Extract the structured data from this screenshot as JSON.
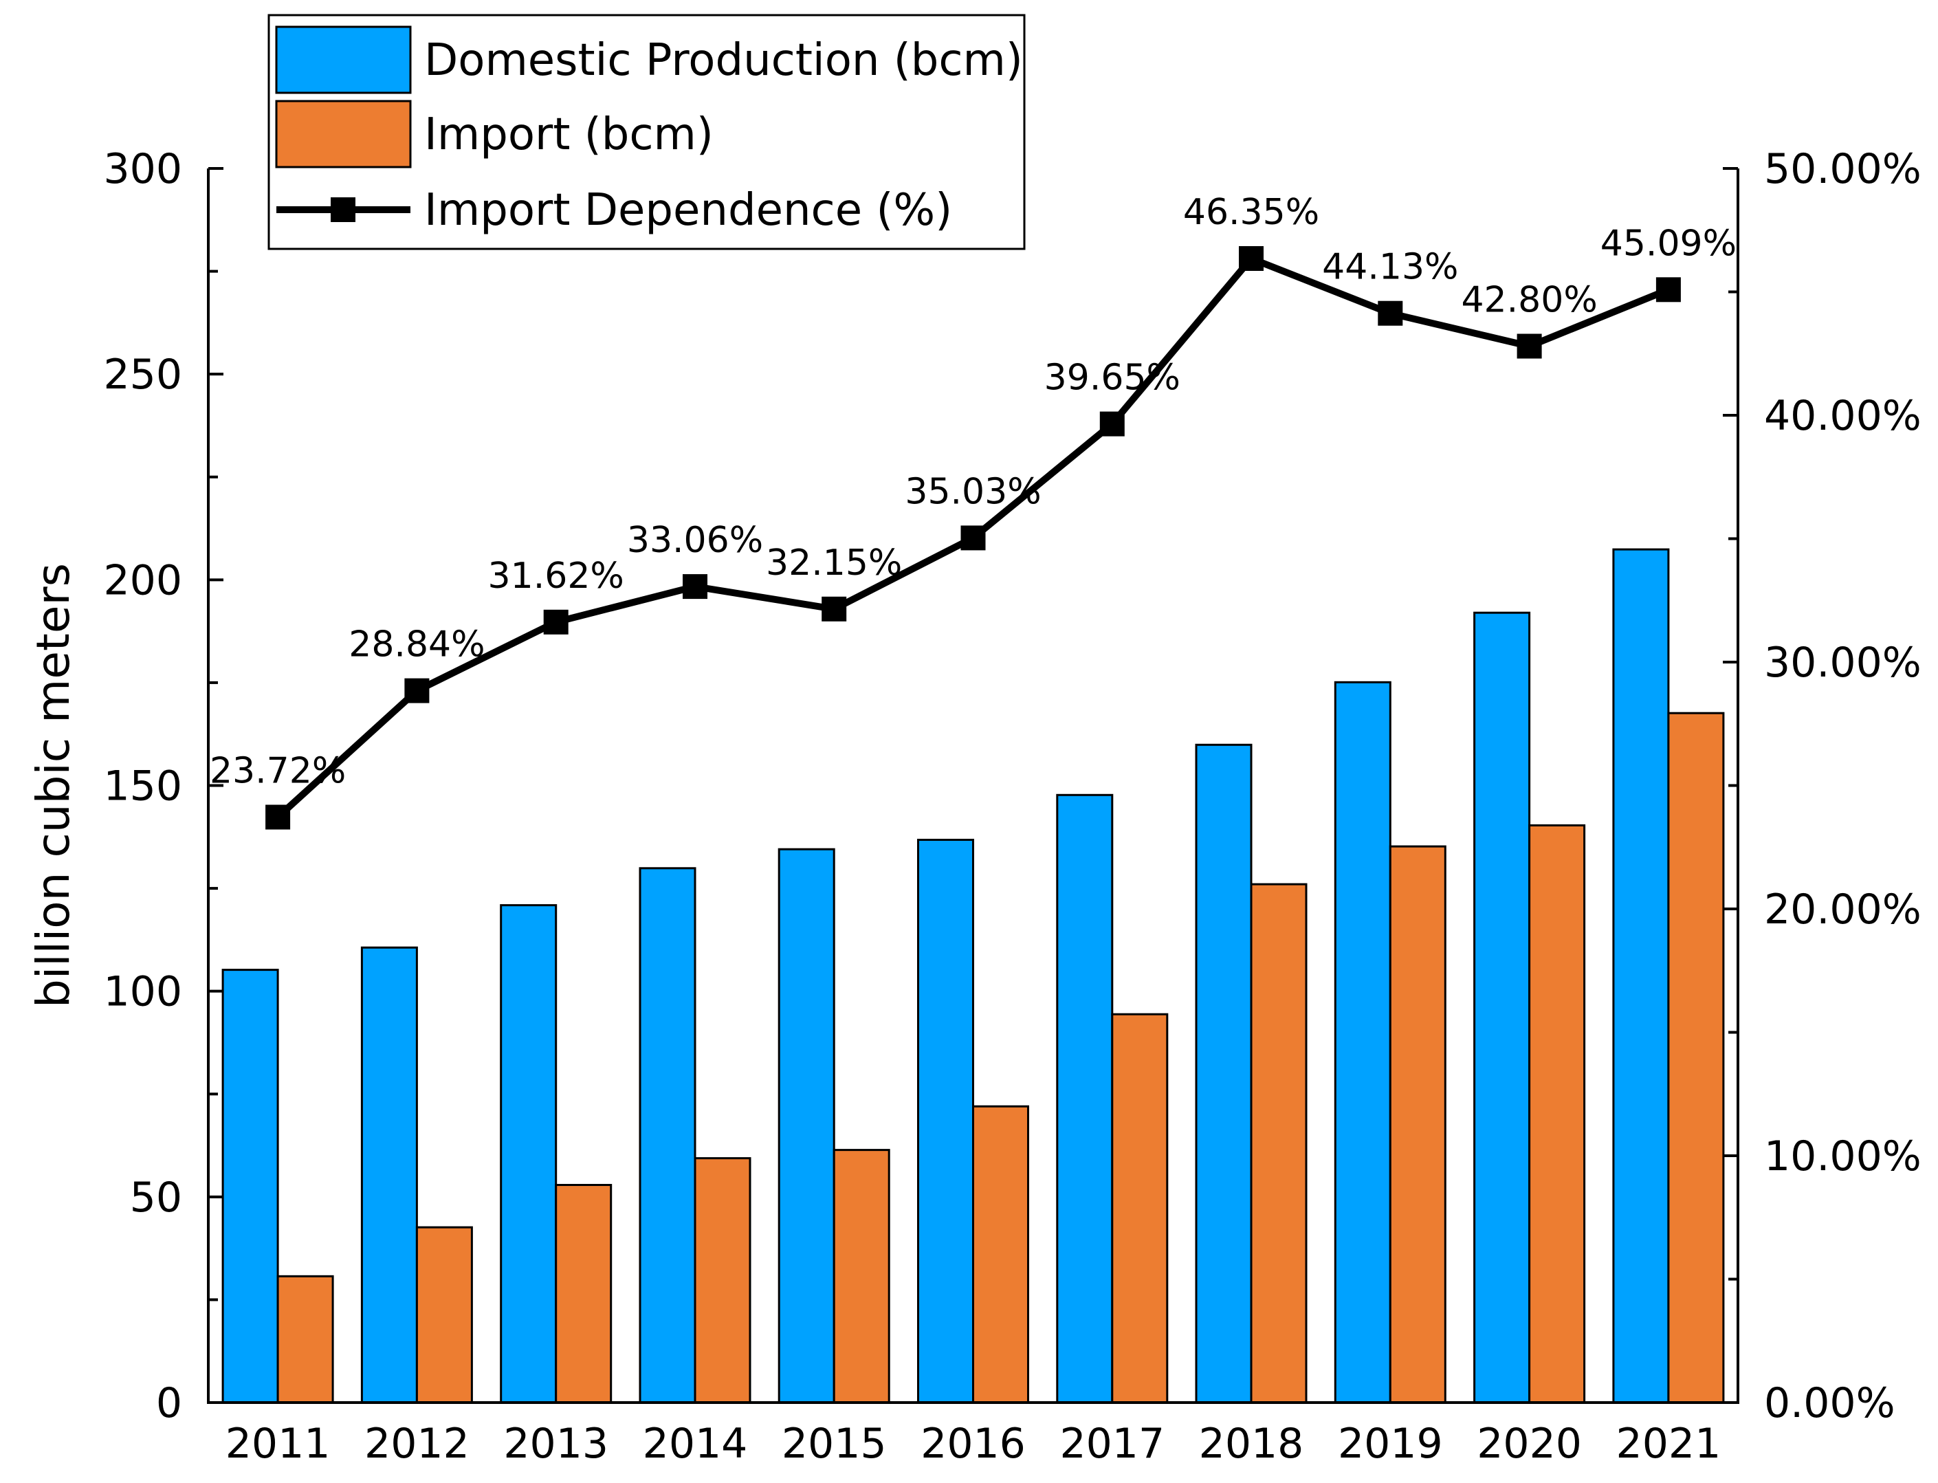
{
  "chart_data": {
    "type": "bar",
    "categories": [
      "2011",
      "2012",
      "2013",
      "2014",
      "2015",
      "2016",
      "2017",
      "2018",
      "2019",
      "2020",
      "2021"
    ],
    "series": [
      {
        "name": "Domestic Production (bcm)",
        "kind": "bar",
        "axis": "left",
        "color": "#00A2FF",
        "values": [
          105.2,
          110.6,
          120.9,
          129.9,
          134.5,
          136.8,
          147.7,
          159.9,
          175.1,
          192.0,
          207.4
        ]
      },
      {
        "name": "Import (bcm)",
        "kind": "bar",
        "axis": "left",
        "color": "#ED7D31",
        "values": [
          30.7,
          42.6,
          52.9,
          59.4,
          61.4,
          72.0,
          94.4,
          126.0,
          135.2,
          140.3,
          167.6
        ]
      },
      {
        "name": "Import Dependence (%)",
        "kind": "line",
        "axis": "right",
        "color": "#000000",
        "values": [
          23.72,
          28.84,
          31.62,
          33.06,
          32.15,
          35.03,
          39.65,
          46.35,
          44.13,
          42.8,
          45.09
        ],
        "labels": [
          "23.72%",
          "28.84%",
          "31.62%",
          "33.06%",
          "32.15%",
          "35.03%",
          "39.65%",
          "46.35%",
          "44.13%",
          "42.80%",
          "45.09%"
        ]
      }
    ],
    "ylabel": "billion cubic meters",
    "ylim": [
      0,
      300
    ],
    "yticks": [
      0,
      50,
      100,
      150,
      200,
      250,
      300
    ],
    "y2lim": [
      0,
      50
    ],
    "y2ticks": [
      0,
      10,
      20,
      30,
      40,
      50
    ],
    "y2tick_labels": [
      "0.00%",
      "10.00%",
      "20.00%",
      "30.00%",
      "40.00%",
      "50.00%"
    ],
    "legend_position": "top-left",
    "grid": false
  }
}
